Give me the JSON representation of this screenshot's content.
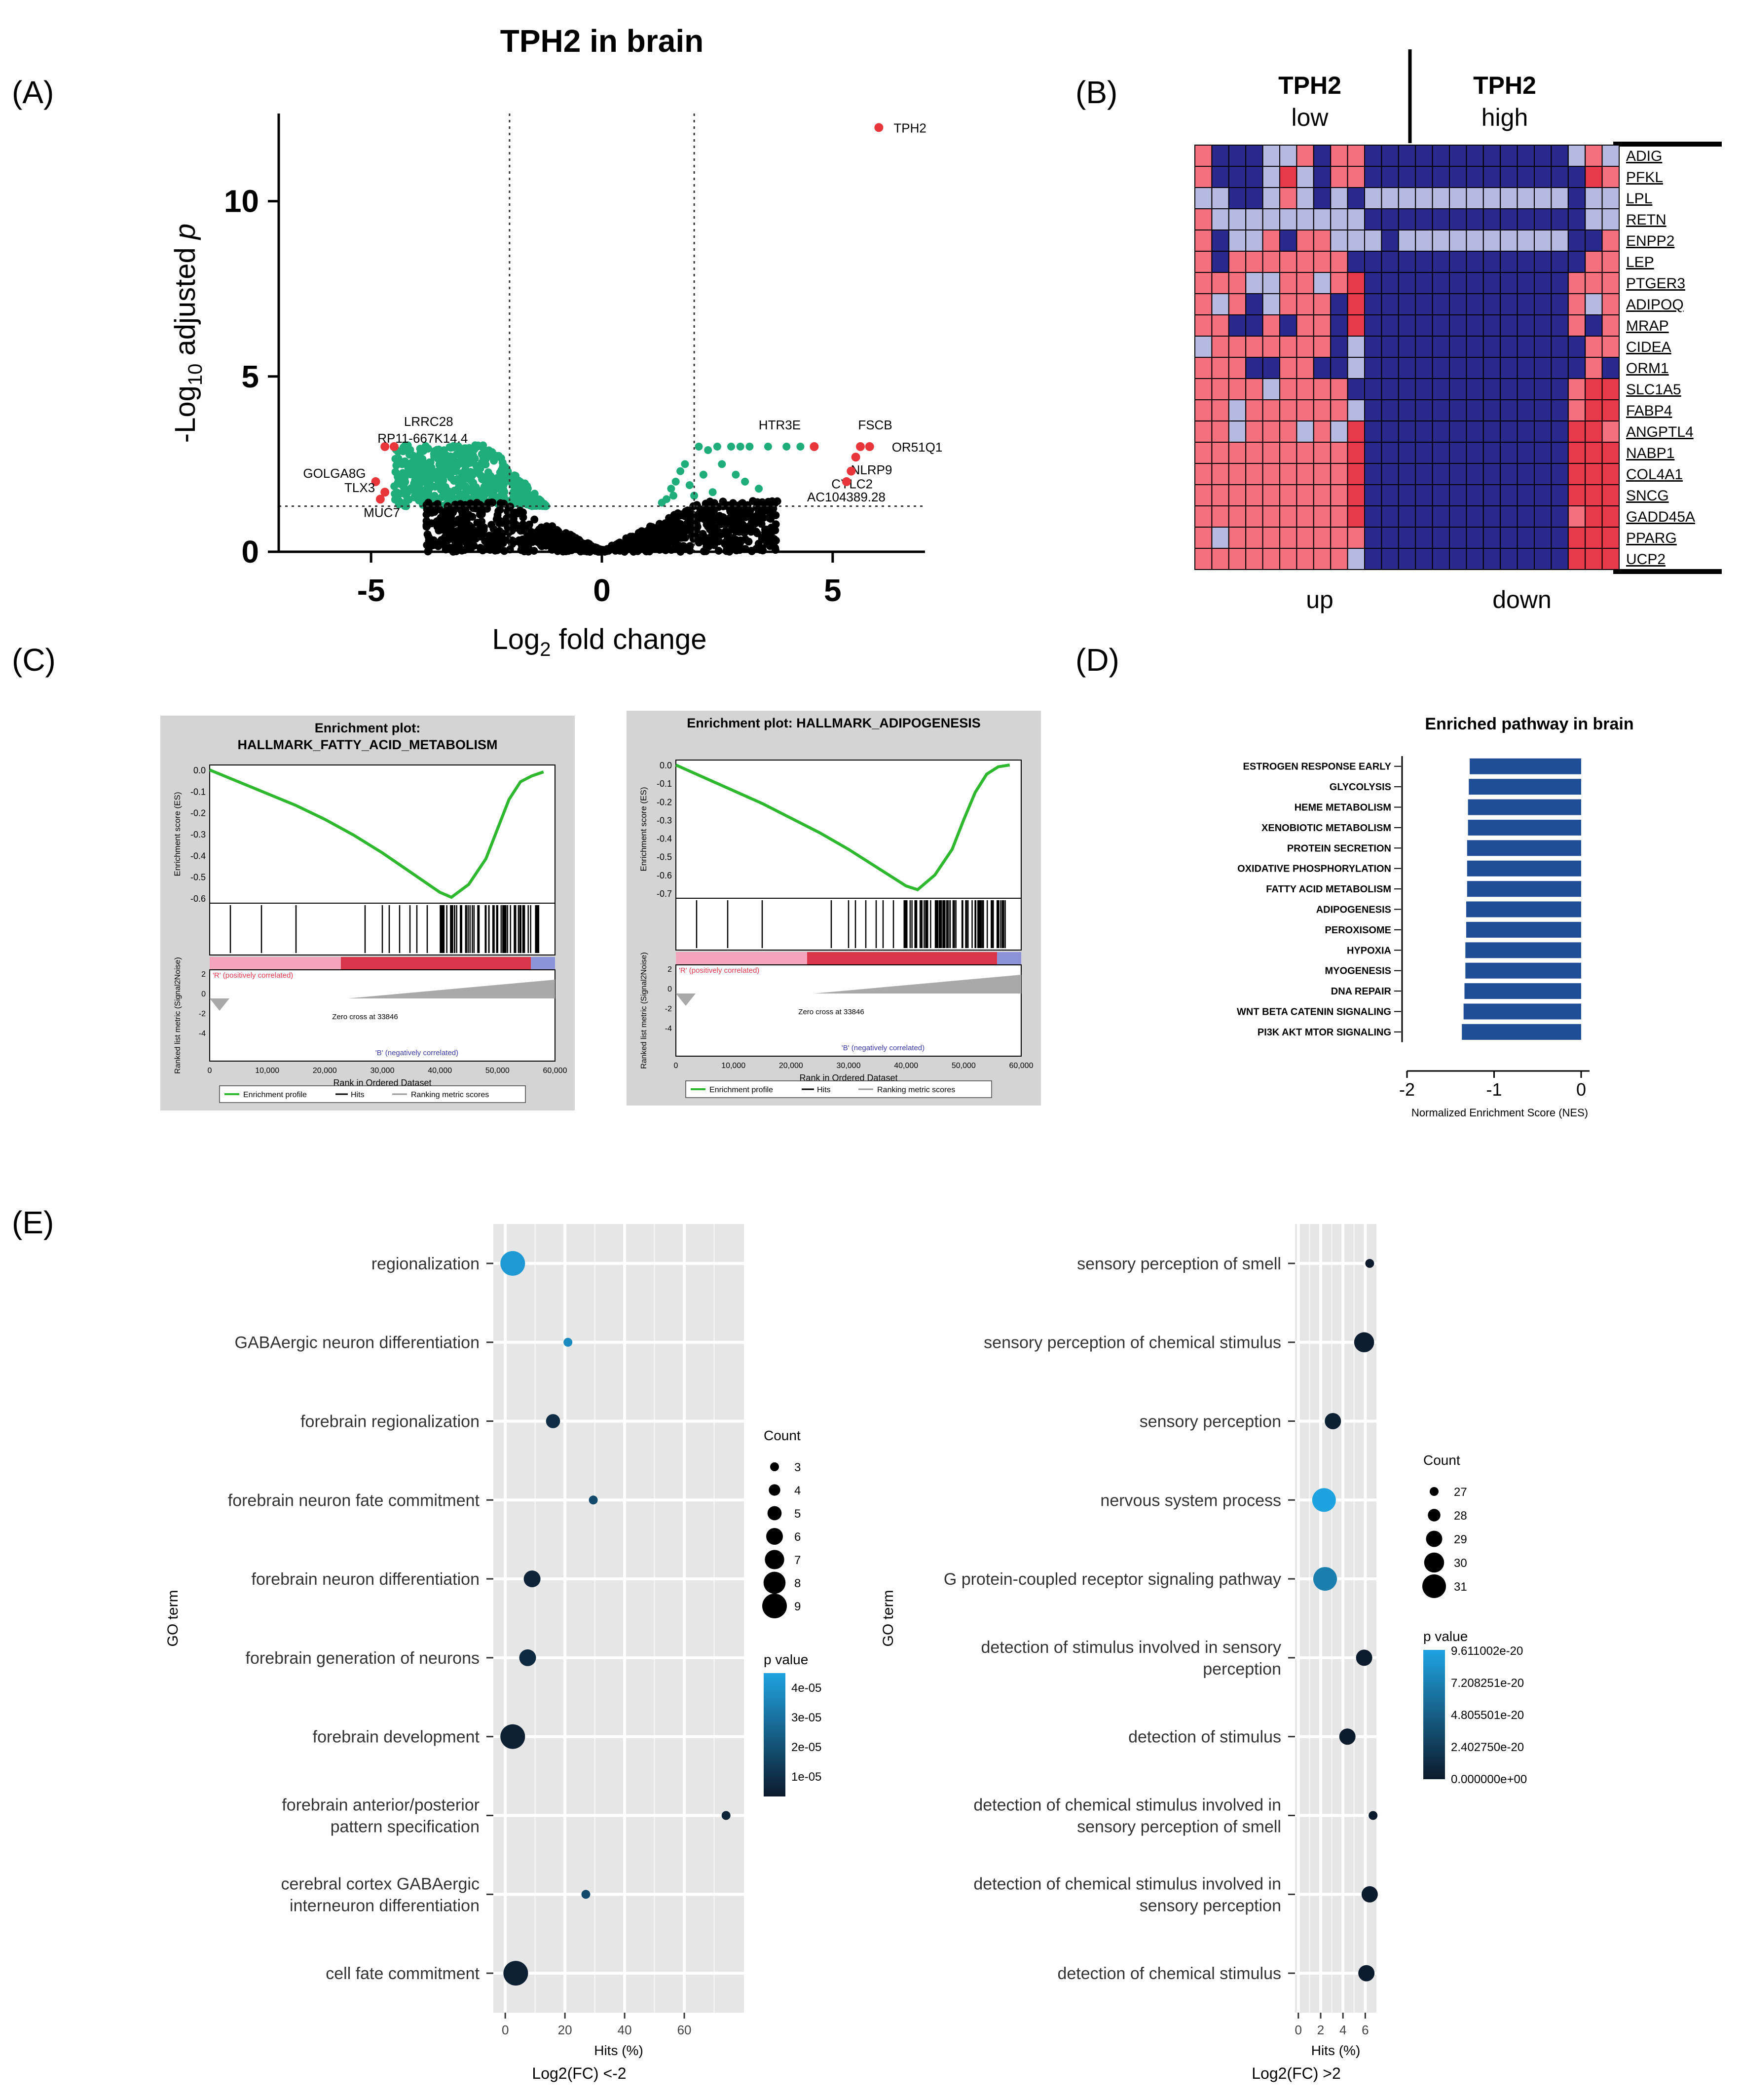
{
  "panel_letters": [
    "(A)",
    "(B)",
    "(C)",
    "(D)",
    "(E)"
  ],
  "colors": {
    "volcano_sig": "#1fad7a",
    "volcano_ns": "#000000",
    "volcano_highlight": "#e8363b",
    "heat_high": "#f4707e",
    "heat_red": "#e8394b",
    "heat_low": "#2a2a8e",
    "heat_light": "#b6b9e0",
    "gsea_green": "#2eb82e",
    "nes_bar": "#1f4e96",
    "go_low": "#0c1a2c",
    "go_high": "#1fa3e0",
    "go_panel_bg": "#e6e6e6"
  },
  "chart_data": [
    {
      "id": "A",
      "type": "scatter",
      "title": "TPH2 in brain",
      "xlabel": "Log2 fold change",
      "ylabel": "-Log10 adjusted p",
      "xlim": [
        -7,
        7
      ],
      "ylim": [
        0,
        12.5
      ],
      "xticks": [
        -5,
        0,
        5
      ],
      "yticks": [
        0,
        5,
        10
      ],
      "thresholds": {
        "x": [
          -2,
          2
        ],
        "y": 1.3
      },
      "labeled_points": [
        {
          "label": "TPH2",
          "x": 6.0,
          "y": 12.1
        },
        {
          "label": "LRRC28",
          "x": -4.5,
          "y": 3.0
        },
        {
          "label": "RP11-667K14.4",
          "x": -4.7,
          "y": 3.0
        },
        {
          "label": "GOLGA8G",
          "x": -4.9,
          "y": 2.0
        },
        {
          "label": "TLX3",
          "x": -4.7,
          "y": 1.7
        },
        {
          "label": "MUC7",
          "x": -4.8,
          "y": 1.5
        },
        {
          "label": "HTR3E",
          "x": 4.6,
          "y": 3.0
        },
        {
          "label": "FSCB",
          "x": 5.6,
          "y": 3.0
        },
        {
          "label": "OR51Q1",
          "x": 5.8,
          "y": 3.0
        },
        {
          "label": "NLRP9",
          "x": 5.5,
          "y": 2.7
        },
        {
          "label": "CYLC2",
          "x": 5.4,
          "y": 2.3
        },
        {
          "label": "AC104389.28",
          "x": 5.3,
          "y": 2.0
        }
      ]
    },
    {
      "id": "B",
      "type": "heatmap",
      "group_labels": [
        {
          "l1": "TPH2",
          "l2": "low"
        },
        {
          "l1": "TPH2",
          "l2": "high"
        }
      ],
      "bottom_labels": [
        "up",
        "down"
      ],
      "genes": [
        "ADIG",
        "PFKL",
        "LPL",
        "RETN",
        "ENPP2",
        "LEP",
        "PTGER3",
        "ADIPOQ",
        "MRAP",
        "CIDEA",
        "ORM1",
        "SLC1A5",
        "FABP4",
        "ANGPTL4",
        "NABP1",
        "COL4A1",
        "SNCG",
        "GADD45A",
        "PPARG",
        "UCP2"
      ],
      "rows": [
        "HLLLPPHLHHLLLLLLLLLLLLPHP",
        "HLLLPRPLHHLLLLLLLLLLLLLRH",
        "PPLLPHPLPLPPPPPPPPPPPPLPP",
        "HPPPPPPPPPLLLLLLLLLLLLLPP",
        "HLPPHLHHPPPLPPPPPPPPPPLLH",
        "HLHHHHHHHLLLLLLLLLLLLLLHH",
        "HHHPPHHPHRLLLLLLLLLLLLHHH",
        "HPHLPHHHLRLLLLLLLLLLLLHPH",
        "HHLLHLHHLRLLLLLLLLLLLLHLH",
        "PHHHHHHHLPLLLLLLLLLLLLLHH",
        "HHHLLHHLLPLLLLLLLLLLLLLHL",
        "HHHHPHHHHLLLLLLLLLLLLLHRR",
        "HHPHHHHHHPLLLLLLLLLLLLHRR",
        "HHPHHHPHPRLLLLLLLLLLLLRRH",
        "HHHHHHHHHRLLLLLLLLLLLLRRR",
        "HHHHHHHHHRLLLLLLLLLLLLRRR",
        "HHHHHHHHHRLLLLLLLLLLLLRRR",
        "HHHHHHHHHRLLLLLLLLLLLLHRR",
        "HPHHHHHHHHLLLLLLLLLLLLRRR",
        "HHHHHHHHHPLLLLLLLLLLLLRRR"
      ]
    },
    {
      "id": "C1",
      "type": "line",
      "title_lines": [
        "Enrichment plot:",
        "HALLMARK_FATTY_ACID_METABOLISM"
      ],
      "ylabel": "Enrichment score (ES)",
      "ylabel2": "Ranked list metric (Signal2Noise)",
      "xlabel": "Rank in Ordered Dataset",
      "xlim": [
        0,
        60000
      ],
      "ylim": [
        -0.65,
        0.0
      ],
      "yticks": [
        "0.0",
        "-0.1",
        "-0.2",
        "-0.3",
        "-0.4",
        "-0.5",
        "-0.6"
      ],
      "xticks": [
        "0",
        "10,000",
        "20,000",
        "30,000",
        "40,000",
        "50,000",
        "60,000"
      ],
      "metric_ticks": [
        "2",
        "0",
        "-2",
        "-4"
      ],
      "x": [
        0,
        5000,
        10000,
        15000,
        20000,
        25000,
        30000,
        35000,
        40000,
        42000,
        45000,
        48000,
        50000,
        52000,
        54000,
        56000,
        58000
      ],
      "y": [
        0,
        -0.06,
        -0.12,
        -0.18,
        -0.25,
        -0.33,
        -0.42,
        -0.52,
        -0.62,
        -0.645,
        -0.58,
        -0.45,
        -0.3,
        -0.15,
        -0.06,
        -0.03,
        -0.01
      ],
      "pos_label": "'R' (positively correlated)",
      "neg_label": "'B' (negatively correlated)",
      "zero_cross": "Zero cross at 33846",
      "legend": [
        "Enrichment profile",
        "Hits",
        "Ranking metric scores"
      ]
    },
    {
      "id": "C2",
      "type": "line",
      "title_lines": [
        "Enrichment plot: HALLMARK_ADIPOGENESIS"
      ],
      "ylabel": "Enrichment score (ES)",
      "ylabel2": "Ranked list metric (Signal2Noise)",
      "xlabel": "Rank in Ordered Dataset",
      "xlim": [
        0,
        60000
      ],
      "ylim": [
        -0.7,
        0.0
      ],
      "yticks": [
        "0.0",
        "-0.1",
        "-0.2",
        "-0.3",
        "-0.4",
        "-0.5",
        "-0.6",
        "-0.7"
      ],
      "xticks": [
        "0",
        "10,000",
        "20,000",
        "30,000",
        "40,000",
        "50,000",
        "60,000"
      ],
      "metric_ticks": [
        "2",
        "0",
        "-2",
        "-4"
      ],
      "x": [
        0,
        5000,
        10000,
        15000,
        20000,
        25000,
        30000,
        35000,
        40000,
        42000,
        45000,
        48000,
        50000,
        52000,
        54000,
        56000,
        58000
      ],
      "y": [
        0,
        -0.07,
        -0.14,
        -0.21,
        -0.29,
        -0.37,
        -0.46,
        -0.56,
        -0.66,
        -0.68,
        -0.6,
        -0.46,
        -0.3,
        -0.15,
        -0.05,
        -0.01,
        0.0
      ],
      "pos_label": "'R' (positively correlated)",
      "neg_label": "'B' (negatively correlated)",
      "zero_cross": "Zero cross at 33846",
      "legend": [
        "Enrichment profile",
        "Hits",
        "Ranking metric scores"
      ]
    },
    {
      "id": "D",
      "type": "bar",
      "title": "Enriched pathway in brain",
      "xlabel": "Normalized Enrichment Score (NES)",
      "xlim": [
        -2,
        0
      ],
      "xticks": [
        -2,
        -1,
        0
      ],
      "categories": [
        "ESTROGEN RESPONSE EARLY",
        "GLYCOLYSIS",
        "HEME METABOLISM",
        "XENOBIOTIC METABOLISM",
        "PROTEIN SECRETION",
        "OXIDATIVE PHOSPHORYLATION",
        "FATTY ACID METABOLISM",
        "ADIPOGENESIS",
        "PEROXISOME",
        "HYPOXIA",
        "MYOGENESIS",
        "DNA REPAIR",
        "WNT BETA CATENIN SIGNALING",
        "PI3K AKT MTOR SIGNALING"
      ],
      "values": [
        -1.28,
        -1.29,
        -1.3,
        -1.3,
        -1.31,
        -1.31,
        -1.31,
        -1.32,
        -1.32,
        -1.33,
        -1.33,
        -1.34,
        -1.35,
        -1.37
      ]
    },
    {
      "id": "E1",
      "type": "scatter",
      "xlabel": "Hits (%)",
      "sublabel": "Log2(FC) <-2",
      "ylabel": "GO term",
      "xlim": [
        -4,
        80
      ],
      "xticks": [
        0,
        20,
        40,
        60
      ],
      "terms": [
        "regionalization",
        "GABAergic neuron differentiation",
        "forebrain regionalization",
        "forebrain neuron fate commitment",
        "forebrain neuron differentiation",
        "forebrain generation of neurons",
        "forebrain development",
        "forebrain anterior/posterior pattern specification",
        "cerebral cortex GABAergic interneuron differentiation",
        "cell fate commitment"
      ],
      "hits": [
        2.5,
        21,
        16,
        29.5,
        9,
        7.5,
        2.5,
        74,
        27,
        3.5
      ],
      "counts": [
        9,
        3,
        5,
        3,
        6,
        6,
        9,
        3,
        3,
        9
      ],
      "pvalues": [
        4e-05,
        3.5e-05,
        6e-06,
        1.5e-05,
        3e-06,
        5e-06,
        2e-06,
        3e-06,
        1.5e-05,
        2e-06
      ],
      "count_legend_title": "Count",
      "count_legend": [
        3,
        4,
        5,
        6,
        7,
        8,
        9
      ],
      "pvalue_legend_title": "p value",
      "pvalue_legend": [
        "4e-05",
        "3e-05",
        "2e-05",
        "1e-05"
      ],
      "pmax": 4.3e-05
    },
    {
      "id": "E2",
      "type": "scatter",
      "xlabel": "Hits (%)",
      "sublabel": "Log2(FC) >2",
      "ylabel": "GO term",
      "xlim": [
        -0.3,
        7
      ],
      "xticks": [
        0,
        2,
        4,
        6
      ],
      "terms": [
        "sensory perception of smell",
        "sensory perception of chemical stimulus",
        "sensory perception",
        "nervous system process",
        "G protein-coupled receptor signaling pathway",
        "detection of stimulus involved in sensory perception",
        "detection of stimulus",
        "detection of chemical stimulus involved in sensory perception of smell",
        "detection of chemical stimulus involved in sensory perception",
        "detection of chemical stimulus"
      ],
      "hits": [
        6.4,
        5.9,
        3.1,
        2.3,
        2.4,
        5.9,
        4.4,
        6.7,
        6.4,
        6.1
      ],
      "counts": [
        27,
        30,
        29,
        31,
        31,
        29,
        29,
        27,
        29,
        29
      ],
      "pvalues": [
        1e-21,
        2e-21,
        5e-21,
        9.6e-20,
        7e-20,
        1e-21,
        1e-21,
        1e-21,
        1e-21,
        1e-21
      ],
      "count_legend_title": "Count",
      "count_legend": [
        27,
        28,
        29,
        30,
        31
      ],
      "pvalue_legend_title": "p value",
      "pvalue_legend": [
        "9.611002e-20",
        "7.208251e-20",
        "4.805501e-20",
        "2.402750e-20",
        "0.000000e+00"
      ],
      "pmax": 9.611002e-20
    }
  ]
}
